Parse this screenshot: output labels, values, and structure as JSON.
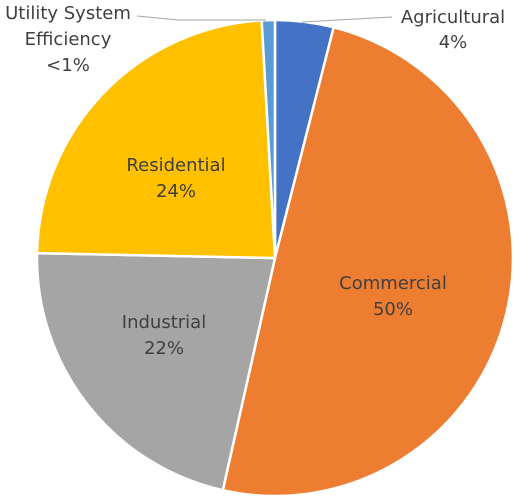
{
  "chart_data": {
    "type": "pie",
    "title": "",
    "slices": [
      {
        "name": "Agricultural",
        "value": 4,
        "label_name": "Agricultural",
        "label_value": "4%",
        "color": "#4472C4"
      },
      {
        "name": "Commercial",
        "value": 50,
        "label_name": "Commercial",
        "label_value": "50%",
        "color": "#ED7D31"
      },
      {
        "name": "Industrial",
        "value": 22,
        "label_name": "Industrial",
        "label_value": "22%",
        "color": "#A5A5A5"
      },
      {
        "name": "Residential",
        "value": 24,
        "label_name": "Residential",
        "label_value": "24%",
        "color": "#FFC000"
      },
      {
        "name": "Utility System Efficiency",
        "value": 0.9,
        "label_name_line1": "Utility System",
        "label_name_line2": "Efficiency",
        "label_value": "<1%",
        "color": "#5B9BD5"
      }
    ],
    "start_angle_deg": 90,
    "direction": "clockwise"
  }
}
